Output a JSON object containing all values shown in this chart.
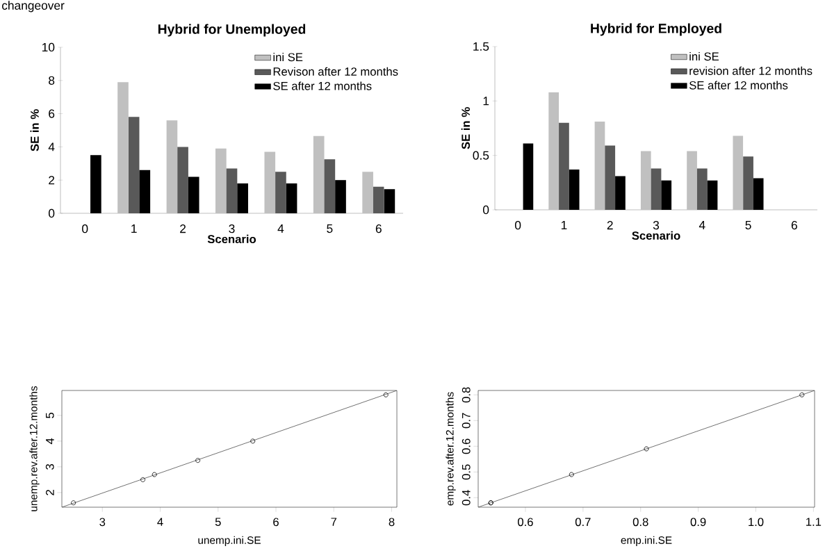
{
  "chart_data": [
    {
      "type": "bar",
      "title": "Hybrid for Unemployed",
      "xlabel": "Scenario",
      "ylabel": "SE in %",
      "categories": [
        "0",
        "1",
        "2",
        "3",
        "4",
        "5",
        "6"
      ],
      "series": [
        {
          "name": "ini SE",
          "color": "#c0c0c0",
          "values": [
            null,
            7.9,
            5.6,
            3.9,
            3.7,
            4.65,
            2.5
          ]
        },
        {
          "name": "Revison after 12 months",
          "color": "#595959",
          "values": [
            null,
            5.8,
            4.0,
            2.7,
            2.5,
            3.25,
            1.6
          ]
        },
        {
          "name": "SE after 12 months",
          "color": "#000000",
          "values": [
            3.5,
            2.6,
            2.2,
            1.8,
            1.8,
            2.0,
            1.45
          ]
        }
      ],
      "ylim": [
        0,
        10
      ],
      "yticks": [
        0,
        2,
        4,
        6,
        8,
        10
      ],
      "legend": "top right",
      "annotations": [
        "changeover"
      ]
    },
    {
      "type": "bar",
      "title": "Hybrid for Employed",
      "xlabel": "Scenario",
      "ylabel": "SE in %",
      "categories": [
        "0",
        "1",
        "2",
        "3",
        "4",
        "5",
        "6"
      ],
      "series": [
        {
          "name": "ini SE",
          "color": "#c0c0c0",
          "values": [
            null,
            1.08,
            0.81,
            0.54,
            0.54,
            0.68,
            null
          ]
        },
        {
          "name": "revision after 12 months",
          "color": "#595959",
          "values": [
            null,
            0.8,
            0.59,
            0.38,
            0.38,
            0.49,
            null
          ]
        },
        {
          "name": "SE after 12 months",
          "color": "#000000",
          "values": [
            0.61,
            0.37,
            0.31,
            0.27,
            0.27,
            0.29,
            null
          ]
        }
      ],
      "ylim": [
        0,
        1.5
      ],
      "yticks": [
        0,
        0.5,
        1,
        1.5
      ],
      "legend": "top right"
    },
    {
      "type": "scatter",
      "xlabel": "unemp.ini.SE",
      "ylabel": "unemp.rev.after.12.months",
      "marker": "circle",
      "series": [
        {
          "color": "#000000",
          "x": [
            7.9,
            5.6,
            3.9,
            3.7,
            4.65,
            2.5
          ],
          "values": [
            5.8,
            4.0,
            2.7,
            2.5,
            3.25,
            1.6
          ]
        },
        {
          "type": "line",
          "marker": "none",
          "color": "#4d4d4d",
          "x": [
            2.3,
            8.09
          ],
          "values": [
            1.43,
            5.97
          ]
        }
      ],
      "xlim": [
        2.3,
        8.09
      ],
      "ylim": [
        1.43,
        5.97
      ],
      "xticks": [
        3,
        4,
        5,
        6,
        7,
        8
      ],
      "yticks": [
        2,
        3,
        4,
        5
      ]
    },
    {
      "type": "scatter",
      "xlabel": "emp.ini.SE",
      "ylabel": "emp.rev.after.12.months",
      "marker": "circle",
      "series": [
        {
          "color": "#000000",
          "x": [
            1.08,
            0.81,
            0.54,
            0.54,
            0.68
          ],
          "values": [
            0.8,
            0.59,
            0.38,
            0.38,
            0.49
          ]
        },
        {
          "type": "line",
          "marker": "none",
          "color": "#4d4d4d",
          "x": [
            0.518,
            1.102
          ],
          "values": [
            0.363,
            0.817
          ]
        }
      ],
      "xlim": [
        0.518,
        1.102
      ],
      "ylim": [
        0.363,
        0.817
      ],
      "xticks": [
        0.6,
        0.7,
        0.8,
        0.9,
        {
          "value": 1.0,
          "label": "1.0"
        },
        1.1
      ],
      "yticks": [
        0.4,
        0.5,
        0.6,
        0.7,
        0.8
      ]
    }
  ]
}
